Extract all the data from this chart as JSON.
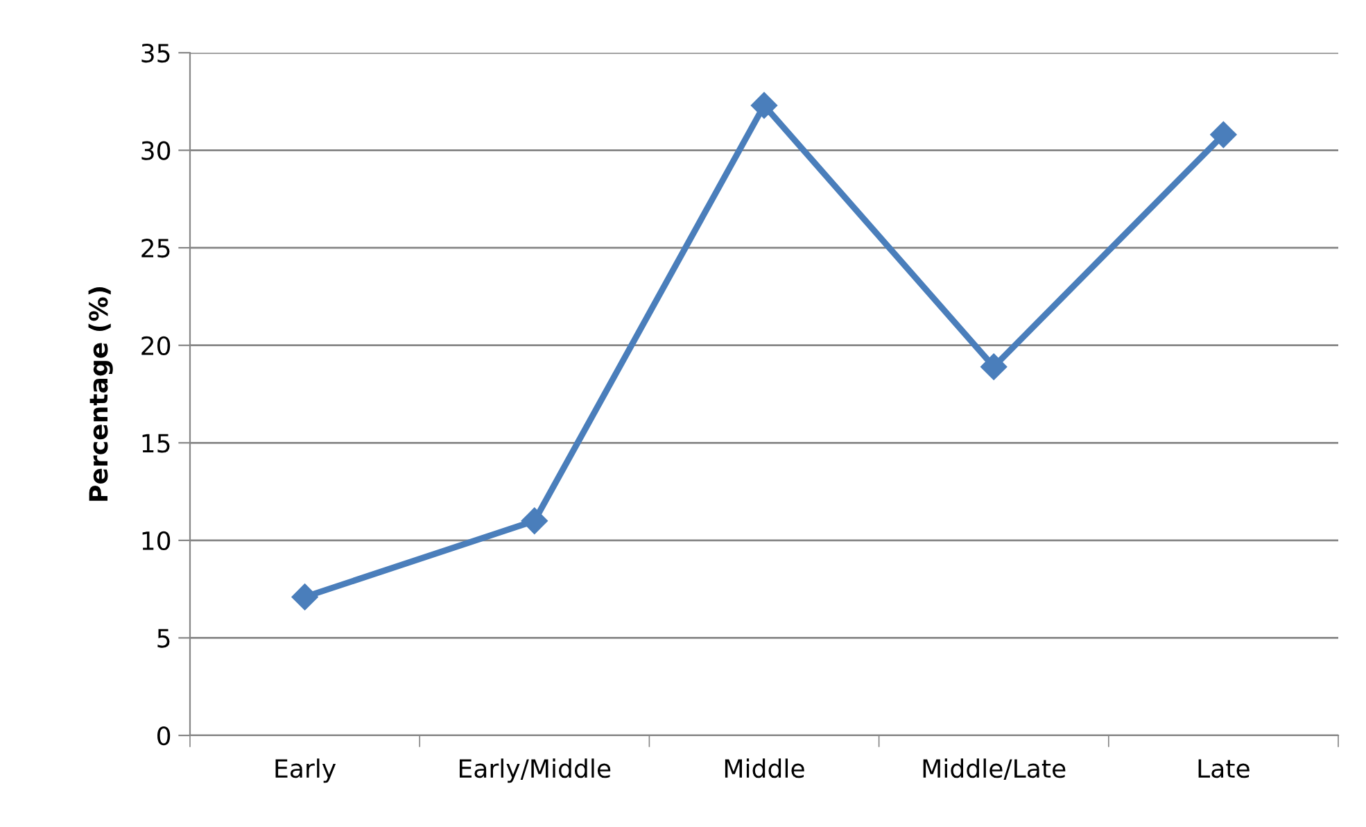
{
  "chart_data": {
    "type": "line",
    "ylabel": "Percentage (%)",
    "categories": [
      "Early",
      "Early/Middle",
      "Middle",
      "Middle/Late",
      "Late"
    ],
    "series": [
      {
        "color": "#4a7ebb",
        "values": [
          7.1,
          11.0,
          32.3,
          18.9,
          30.8
        ]
      }
    ],
    "ylim": [
      0,
      35
    ],
    "yticks": [
      0,
      5,
      10,
      15,
      20,
      25,
      30,
      35
    ],
    "grid": "y",
    "marker": "diamond",
    "line_style": "solid"
  }
}
